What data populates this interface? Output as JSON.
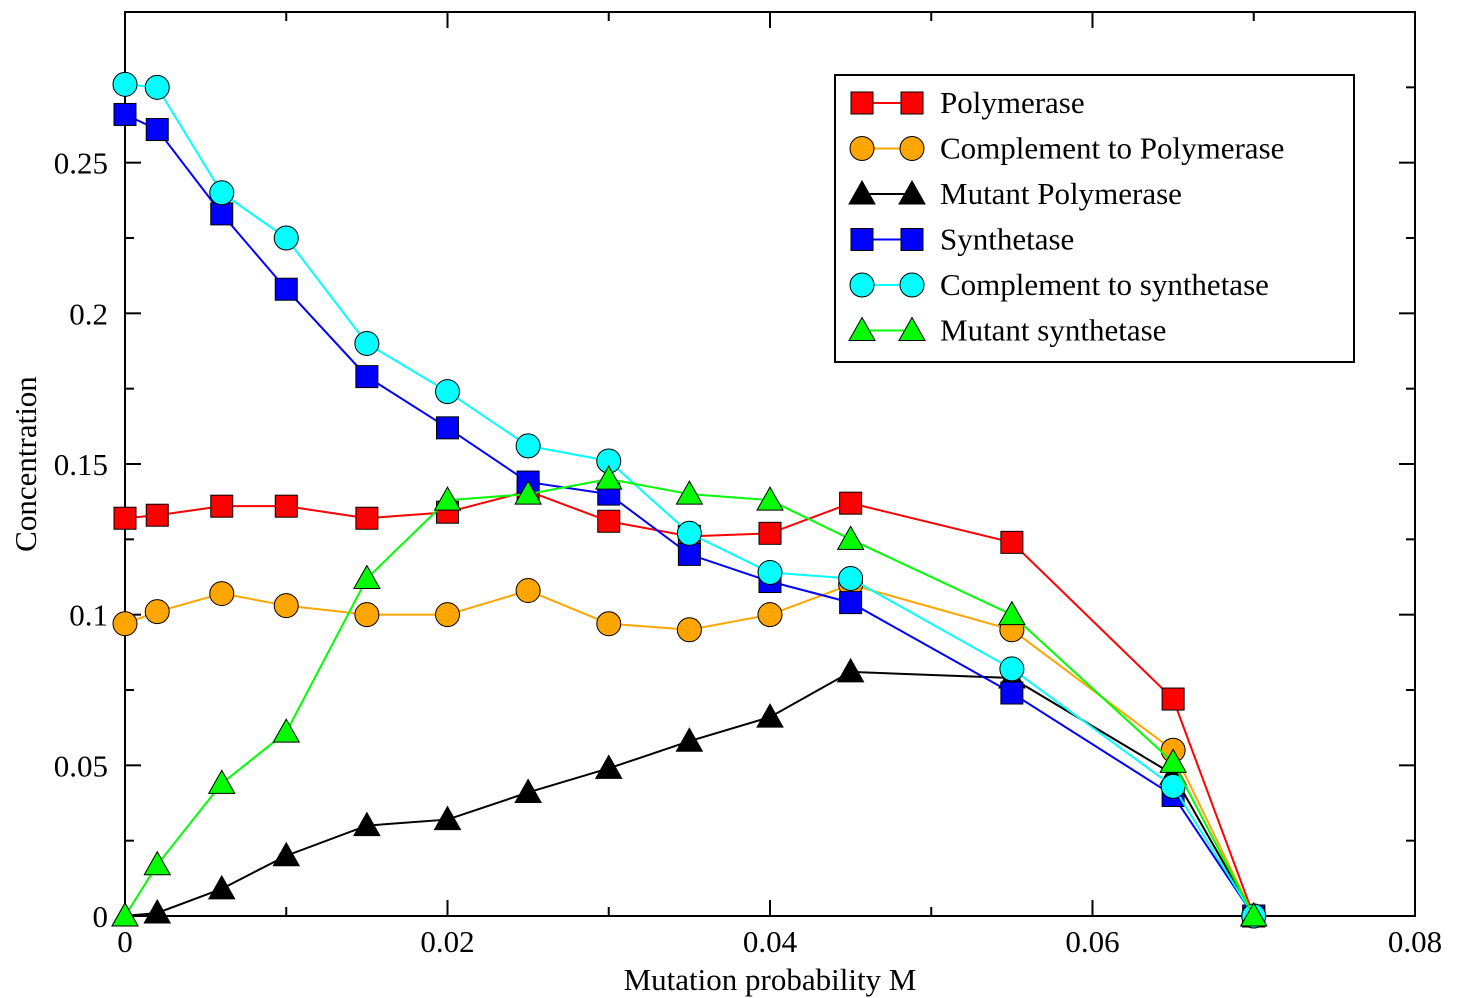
{
  "chart_data": {
    "type": "line",
    "title": "",
    "xlabel": "Mutation probability M",
    "ylabel": "Concentration",
    "xlim": [
      0,
      0.08
    ],
    "ylim": [
      0,
      0.3
    ],
    "x_ticks": [
      0,
      0.02,
      0.04,
      0.06,
      0.08
    ],
    "x_tick_labels": [
      "0",
      "0.02",
      "0.04",
      "0.06",
      "0.08"
    ],
    "y_ticks": [
      0,
      0.05,
      0.1,
      0.15,
      0.2,
      0.25
    ],
    "y_tick_labels": [
      "0",
      "0.05",
      "0.1",
      "0.15",
      "0.2",
      "0.25"
    ],
    "grid": false,
    "legend_position": "top-right",
    "x": [
      0,
      0.002,
      0.006,
      0.01,
      0.015,
      0.02,
      0.025,
      0.03,
      0.035,
      0.04,
      0.045,
      0.055,
      0.065,
      0.07
    ],
    "series": [
      {
        "name": "Polymerase",
        "color": "#ff0000",
        "marker": "square",
        "values": [
          0.132,
          0.133,
          0.136,
          0.136,
          0.132,
          0.134,
          0.141,
          0.131,
          0.126,
          0.127,
          0.137,
          0.124,
          0.072,
          0.0
        ]
      },
      {
        "name": "Complement to Polymerase",
        "color": "#ffa500",
        "marker": "circle",
        "values": [
          0.097,
          0.101,
          0.107,
          0.103,
          0.1,
          0.1,
          0.108,
          0.097,
          0.095,
          0.1,
          0.11,
          0.095,
          0.055,
          0.0
        ]
      },
      {
        "name": "Mutant Polymerase",
        "color": "#000000",
        "marker": "triangle",
        "values": [
          0.0,
          0.001,
          0.009,
          0.02,
          0.03,
          0.032,
          0.041,
          0.049,
          0.058,
          0.066,
          0.081,
          0.079,
          0.047,
          0.0
        ]
      },
      {
        "name": "Synthetase",
        "color": "#0000ff",
        "marker": "square",
        "values": [
          0.266,
          0.261,
          0.233,
          0.208,
          0.179,
          0.162,
          0.144,
          0.14,
          0.12,
          0.111,
          0.104,
          0.074,
          0.04,
          0.0
        ]
      },
      {
        "name": "Complement to synthetase",
        "color": "#00ffff",
        "marker": "circle",
        "values": [
          0.276,
          0.275,
          0.24,
          0.225,
          0.19,
          0.174,
          0.156,
          0.151,
          0.127,
          0.114,
          0.112,
          0.082,
          0.043,
          0.0
        ]
      },
      {
        "name": "Mutant synthetase",
        "color": "#00ff00",
        "marker": "triangle",
        "values": [
          0.0,
          0.017,
          0.044,
          0.061,
          0.112,
          0.138,
          0.14,
          0.145,
          0.14,
          0.138,
          0.125,
          0.1,
          0.051,
          0.0
        ]
      }
    ]
  }
}
